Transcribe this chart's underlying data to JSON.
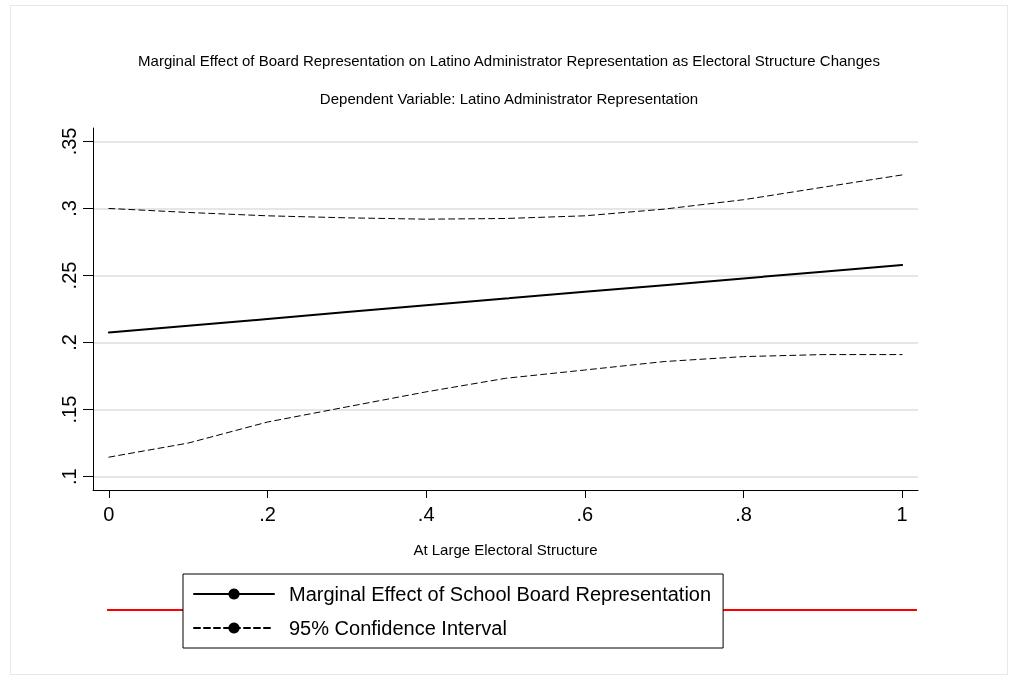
{
  "chart_data": {
    "type": "line",
    "title": "Marginal Effect of Board Representation on Latino Administrator Representation as Electoral Structure Changes",
    "subtitle": "Dependent Variable: Latino Administrator Representation",
    "xlabel": "At Large Electoral Structure",
    "x": [
      0,
      0.1,
      0.2,
      0.3,
      0.4,
      0.5,
      0.6,
      0.7,
      0.8,
      0.9,
      1
    ],
    "series": [
      {
        "name": "Marginal Effect of School Board Representation",
        "color": "#000000",
        "line_style": "solid",
        "values": [
          0.2075,
          0.2125,
          0.2175,
          0.2227,
          0.2278,
          0.2328,
          0.2378,
          0.2428,
          0.2478,
          0.2528,
          0.2578
        ]
      },
      {
        "name": "95% Confidence Interval",
        "color": "#000000",
        "line_style": "dashed",
        "values": [
          0.3,
          0.297,
          0.2945,
          0.293,
          0.292,
          0.2925,
          0.2945,
          0.2995,
          0.3065,
          0.3158,
          0.325
        ]
      },
      {
        "color": "#000000",
        "line_style": "dashed",
        "values": [
          0.1145,
          0.125,
          0.1407,
          0.152,
          0.1632,
          0.1733,
          0.1795,
          0.1858,
          0.1895,
          0.191,
          0.191
        ]
      }
    ],
    "xlim": [
      -0.02,
      1.02
    ],
    "xticks": [
      0,
      {
        "value": 0.2,
        "label": ".2"
      },
      {
        "value": 0.4,
        "label": ".4"
      },
      {
        "value": 0.6,
        "label": ".6"
      },
      {
        "value": 0.8,
        "label": ".8"
      },
      1
    ],
    "ylim": [
      0.09,
      0.36
    ],
    "yticks": [
      {
        "value": 0.1,
        "label": ".1"
      },
      {
        "value": 0.15,
        "label": ".15"
      },
      {
        "value": 0.2,
        "label": ".2"
      },
      {
        "value": 0.25,
        "label": ".25"
      },
      {
        "value": 0.3,
        "label": ".3"
      },
      {
        "value": 0.35,
        "label": ".35"
      }
    ],
    "grid": "y",
    "legend": "bottom",
    "marker": "none"
  }
}
